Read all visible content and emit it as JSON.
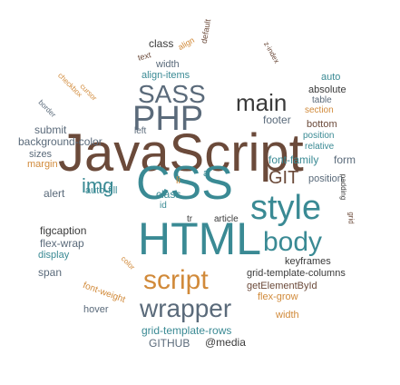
{
  "palette": {
    "brown": "#6b4a3a",
    "teal": "#3a8a94",
    "orange": "#d18a3a",
    "slate": "#5a6a7a",
    "dark": "#3a3a3a"
  },
  "words": [
    "JavaScript",
    "CSS",
    "HTML",
    "PHP",
    "SASS",
    "style",
    "script",
    "wrapper",
    "body",
    "main",
    "GIT",
    "img",
    "footer",
    "bottom",
    "position",
    "relative",
    "font-family",
    "form",
    "background-color",
    "submit",
    "sizes",
    "margin",
    "auto-fill",
    "alert",
    "figcaption",
    "flex-wrap",
    "display",
    "span",
    "font-weight",
    "hover",
    "grid-template-rows",
    "GITHUB",
    "@media",
    "width",
    "flex-grow",
    "getElementById",
    "grid-template-columns",
    "keyframes",
    "article",
    "class",
    "id",
    "tr",
    "li",
    "a",
    "align-items",
    "auto",
    "absolute",
    "table",
    "section",
    "left",
    "align",
    "text",
    "checkbox",
    "cursor",
    "border",
    "default",
    "z-index",
    "padding",
    "grid",
    "color"
  ]
}
